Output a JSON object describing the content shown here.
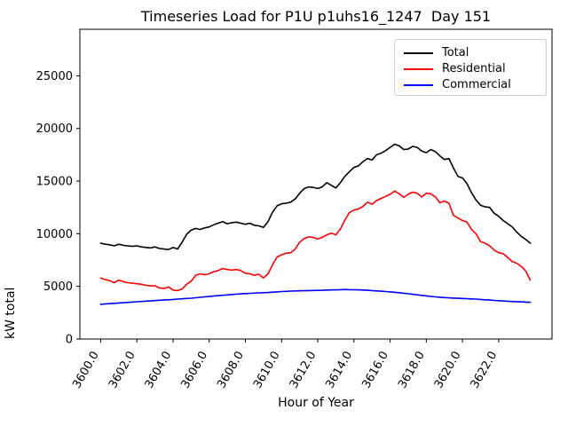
{
  "chart_data": {
    "type": "line",
    "title": "Timeseries Load for P1U p1uhs16_1247  Day 151",
    "xlabel": "Hour of Year",
    "ylabel": "kW total",
    "xlim": [
      3598.85,
      3624.95
    ],
    "ylim": [
      0,
      29420
    ],
    "grid": false,
    "legend": {
      "position": "upper right",
      "entries": [
        "Total",
        "Residential",
        "Commercial"
      ]
    },
    "x_ticks": {
      "values": [
        3600,
        3602,
        3604,
        3606,
        3608,
        3610,
        3612,
        3614,
        3616,
        3618,
        3620,
        3622
      ],
      "labels": [
        "3600.0",
        "3602.0",
        "3604.0",
        "3606.0",
        "3608.0",
        "3610.0",
        "3612.0",
        "3614.0",
        "3616.0",
        "3618.0",
        "3620.0",
        "3622.0"
      ],
      "rotation_deg": 60
    },
    "y_ticks": {
      "values": [
        0,
        5000,
        10000,
        15000,
        20000,
        25000
      ],
      "labels": [
        "0",
        "5000",
        "10000",
        "15000",
        "20000",
        "25000"
      ]
    },
    "x": [
      3600.0,
      3600.25,
      3600.5,
      3600.75,
      3601.0,
      3601.25,
      3601.5,
      3601.75,
      3602.0,
      3602.25,
      3602.5,
      3602.75,
      3603.0,
      3603.25,
      3603.5,
      3603.75,
      3604.0,
      3604.25,
      3604.5,
      3604.75,
      3605.0,
      3605.25,
      3605.5,
      3605.75,
      3606.0,
      3606.25,
      3606.5,
      3606.75,
      3607.0,
      3607.25,
      3607.5,
      3607.75,
      3608.0,
      3608.25,
      3608.5,
      3608.75,
      3609.0,
      3609.25,
      3609.5,
      3609.75,
      3610.0,
      3610.25,
      3610.5,
      3610.75,
      3611.0,
      3611.25,
      3611.5,
      3611.75,
      3612.0,
      3612.25,
      3612.5,
      3612.75,
      3613.0,
      3613.25,
      3613.5,
      3613.75,
      3614.0,
      3614.25,
      3614.5,
      3614.75,
      3615.0,
      3615.25,
      3615.5,
      3615.75,
      3616.0,
      3616.25,
      3616.5,
      3616.75,
      3617.0,
      3617.25,
      3617.5,
      3617.75,
      3618.0,
      3618.25,
      3618.5,
      3618.75,
      3619.0,
      3619.25,
      3619.5,
      3619.75,
      3620.0,
      3620.25,
      3620.5,
      3620.75,
      3621.0,
      3621.25,
      3621.5,
      3621.75,
      3622.0,
      3622.25,
      3622.5,
      3622.75,
      3623.0,
      3623.25,
      3623.5,
      3623.75
    ],
    "series": [
      {
        "name": "Total",
        "color": "#000000",
        "values": [
          9100,
          9000,
          8950,
          8850,
          9000,
          8900,
          8850,
          8800,
          8850,
          8750,
          8700,
          8650,
          8750,
          8600,
          8550,
          8500,
          8700,
          8550,
          9200,
          9950,
          10350,
          10500,
          10400,
          10550,
          10650,
          10850,
          11000,
          11150,
          10950,
          11050,
          11100,
          11000,
          10900,
          11000,
          10800,
          10750,
          10600,
          11150,
          12050,
          12650,
          12850,
          12900,
          13000,
          13300,
          13850,
          14300,
          14450,
          14400,
          14300,
          14450,
          14850,
          14600,
          14350,
          14850,
          15450,
          15900,
          16300,
          16450,
          16850,
          17150,
          17000,
          17500,
          17650,
          17900,
          18200,
          18500,
          18350,
          18000,
          18050,
          18300,
          18200,
          17850,
          17700,
          18000,
          17800,
          17400,
          17050,
          17150,
          16250,
          15450,
          15300,
          14750,
          13900,
          13200,
          12700,
          12550,
          12500,
          11950,
          11650,
          11250,
          10950,
          10650,
          10150,
          9750,
          9450,
          9100
        ]
      },
      {
        "name": "Residential",
        "color": "#ff0000",
        "values": [
          5800,
          5650,
          5550,
          5350,
          5600,
          5450,
          5350,
          5300,
          5250,
          5200,
          5100,
          5050,
          5050,
          4850,
          4800,
          4950,
          4650,
          4600,
          4750,
          5200,
          5500,
          6050,
          6200,
          6100,
          6200,
          6400,
          6500,
          6700,
          6600,
          6550,
          6600,
          6500,
          6250,
          6200,
          6050,
          6150,
          5800,
          6200,
          7050,
          7800,
          8000,
          8150,
          8200,
          8550,
          9200,
          9550,
          9700,
          9650,
          9500,
          9650,
          9900,
          10050,
          9900,
          10450,
          11300,
          12000,
          12250,
          12350,
          12600,
          13000,
          12800,
          13150,
          13350,
          13550,
          13750,
          14050,
          13800,
          13450,
          13750,
          13950,
          13850,
          13500,
          13850,
          13800,
          13500,
          12950,
          13100,
          12900,
          11750,
          11500,
          11250,
          11100,
          10400,
          10000,
          9250,
          9100,
          8850,
          8450,
          8200,
          8100,
          7750,
          7350,
          7200,
          6900,
          6450,
          5600
        ]
      },
      {
        "name": "Commercial",
        "color": "#0000ff",
        "values": [
          3300,
          3330,
          3360,
          3390,
          3420,
          3450,
          3480,
          3510,
          3540,
          3570,
          3600,
          3620,
          3650,
          3680,
          3700,
          3730,
          3760,
          3790,
          3820,
          3850,
          3880,
          3920,
          3960,
          4000,
          4040,
          4080,
          4120,
          4160,
          4190,
          4230,
          4260,
          4290,
          4320,
          4340,
          4360,
          4380,
          4400,
          4420,
          4450,
          4480,
          4510,
          4530,
          4550,
          4570,
          4580,
          4590,
          4600,
          4610,
          4620,
          4630,
          4650,
          4660,
          4670,
          4680,
          4700,
          4690,
          4680,
          4670,
          4650,
          4630,
          4600,
          4570,
          4540,
          4510,
          4480,
          4440,
          4400,
          4350,
          4300,
          4250,
          4200,
          4150,
          4100,
          4050,
          4000,
          3970,
          3940,
          3910,
          3890,
          3870,
          3850,
          3830,
          3810,
          3790,
          3760,
          3730,
          3700,
          3670,
          3640,
          3610,
          3590,
          3570,
          3550,
          3530,
          3510,
          3490
        ]
      }
    ]
  }
}
